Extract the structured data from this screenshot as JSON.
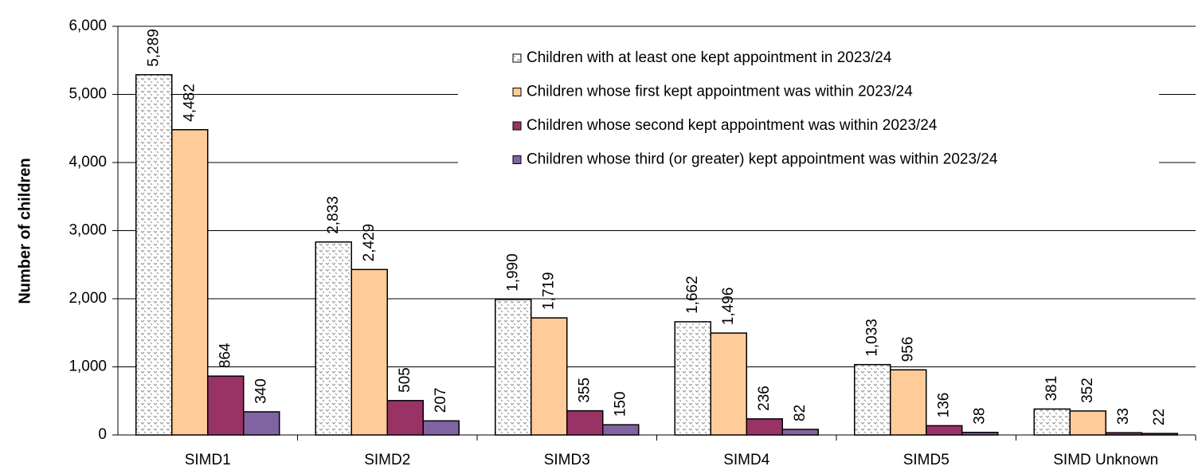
{
  "chart_data": {
    "type": "bar",
    "y_label": "Number of children",
    "categories": [
      "SIMD1",
      "SIMD2",
      "SIMD3",
      "SIMD4",
      "SIMD5",
      "SIMD Unknown"
    ],
    "series": [
      {
        "name": "Children with at least one kept appointment in 2023/24",
        "color": "pattern",
        "values": [
          5289,
          2833,
          1990,
          1662,
          1033,
          381
        ],
        "value_labels": [
          "5,289",
          "2,833",
          "1,990",
          "1,662",
          "1,033",
          "381"
        ]
      },
      {
        "name": "Children whose first kept appointment was within 2023/24",
        "color": "#ffcc99",
        "values": [
          4482,
          2429,
          1719,
          1496,
          956,
          352
        ],
        "value_labels": [
          "4,482",
          "2,429",
          "1,719",
          "1,496",
          "956",
          "352"
        ]
      },
      {
        "name": "Children whose second kept appointment was within 2023/24",
        "color": "#993366",
        "values": [
          864,
          505,
          355,
          236,
          136,
          33
        ],
        "value_labels": [
          "864",
          "505",
          "355",
          "236",
          "136",
          "33"
        ]
      },
      {
        "name": "Children whose third (or greater) kept appointment was within 2023/24",
        "color": "#8064a2",
        "values": [
          340,
          207,
          150,
          82,
          38,
          22
        ],
        "value_labels": [
          "340",
          "207",
          "150",
          "82",
          "38",
          "22"
        ]
      }
    ],
    "ylim": [
      0,
      6000
    ],
    "yticks": [
      0,
      {
        "value": 1000,
        "label": "1,000"
      },
      {
        "value": 2000,
        "label": "2,000"
      },
      {
        "value": 3000,
        "label": "3,000"
      },
      {
        "value": 4000,
        "label": "4,000"
      },
      {
        "value": 5000,
        "label": "5,000"
      },
      {
        "value": 6000,
        "label": "6,000"
      }
    ],
    "grid": true,
    "legend": "upper right"
  }
}
